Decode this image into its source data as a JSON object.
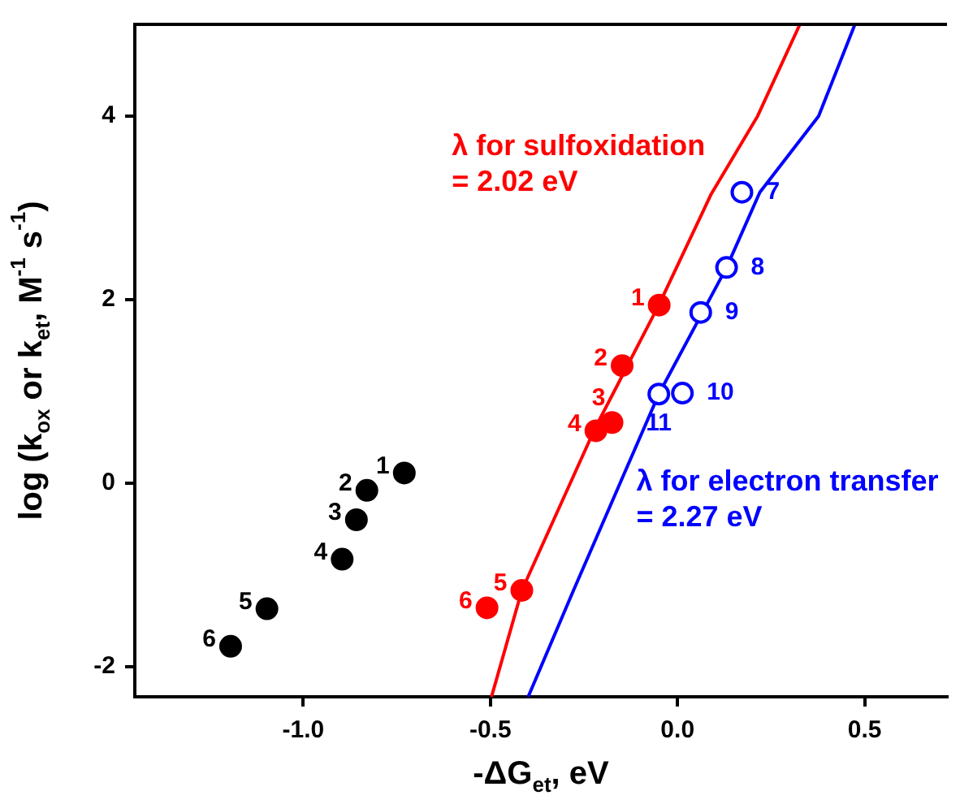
{
  "chart_data": {
    "type": "scatter",
    "xlabel": "-ΔG$_{et}$, eV",
    "ylabel": "log (k$_{ox}$ or k$_{et}$, M$^{-1}$ s$^{-1}$)",
    "xlim": [
      -1.45,
      0.72
    ],
    "xticks": [
      {
        "value": -1,
        "label": "-1.0"
      },
      {
        "value": -0.5,
        "label": "-0.5"
      },
      {
        "value": 0,
        "label": "0.0"
      },
      {
        "value": 0.5,
        "label": "0.5"
      }
    ],
    "ylim": [
      -2.33,
      5
    ],
    "yticks": [
      -2,
      0,
      2,
      4
    ],
    "grid": false,
    "legend": false,
    "series": [
      {
        "color": "#000000",
        "marker": "circle",
        "x": [
          -0.73,
          -0.83,
          -0.858,
          -0.896,
          -1.097,
          -1.194
        ],
        "values": [
          0.11,
          -0.08,
          -0.4,
          -0.83,
          -1.37,
          -1.78
        ]
      },
      {
        "color": "#ff0000",
        "marker": "circle",
        "x": [
          -0.049,
          -0.148,
          -0.175,
          -0.218,
          -0.416,
          -0.509
        ],
        "values": [
          1.94,
          1.28,
          0.66,
          0.57,
          -1.17,
          -1.36
        ]
      },
      {
        "color": "#0000ff",
        "marker": "circle",
        "x": [
          0.172,
          0.131,
          0.062,
          0.013,
          -0.05
        ],
        "values": [
          3.17,
          2.35,
          1.86,
          0.98,
          0.97
        ]
      },
      {
        "type": "line",
        "name": "λ for sulfoxidation\n= 2.02 eV",
        "color": "#ff0000",
        "x": [
          -0.497,
          -0.416,
          -0.22,
          -0.05,
          0.09,
          0.214,
          0.327
        ],
        "values": [
          -2.33,
          -1.17,
          0.6,
          1.94,
          3.15,
          4,
          5
        ]
      },
      {
        "type": "line",
        "name": "λ for electron transfer\n= 2.27 eV",
        "color": "#0000ff",
        "x": [
          -0.399,
          -0.278,
          -0.05,
          0.131,
          0.22,
          0.377,
          0.474
        ],
        "values": [
          -2.33,
          -1.17,
          0.97,
          2.35,
          3.17,
          4,
          5
        ]
      }
    ],
    "annotations": [
      {
        "text": "1",
        "x": -0.73,
        "y": 0.11
      },
      {
        "text": "2",
        "x": -0.83,
        "y": -0.08
      },
      {
        "text": "3",
        "x": -0.858,
        "y": -0.4
      },
      {
        "text": "4",
        "x": -0.896,
        "y": -0.83
      },
      {
        "text": "5",
        "x": -1.097,
        "y": -1.37
      },
      {
        "text": "6",
        "x": -1.194,
        "y": -1.78
      },
      {
        "text": "1",
        "x": -0.049,
        "y": 1.94
      },
      {
        "text": "2",
        "x": -0.148,
        "y": 1.28
      },
      {
        "text": "3",
        "x": -0.175,
        "y": 0.66
      },
      {
        "text": "4",
        "x": -0.218,
        "y": 0.57
      },
      {
        "text": "5",
        "x": -0.416,
        "y": -1.17
      },
      {
        "text": "6",
        "x": -0.509,
        "y": -1.36
      },
      {
        "text": "7",
        "x": 0.172,
        "y": 3.17
      },
      {
        "text": "8",
        "x": 0.131,
        "y": 2.35
      },
      {
        "text": "9",
        "x": 0.062,
        "y": 1.86
      },
      {
        "text": "10",
        "x": 0.013,
        "y": 0.98
      },
      {
        "text": "11",
        "x": -0.05,
        "y": 0.97
      }
    ]
  }
}
